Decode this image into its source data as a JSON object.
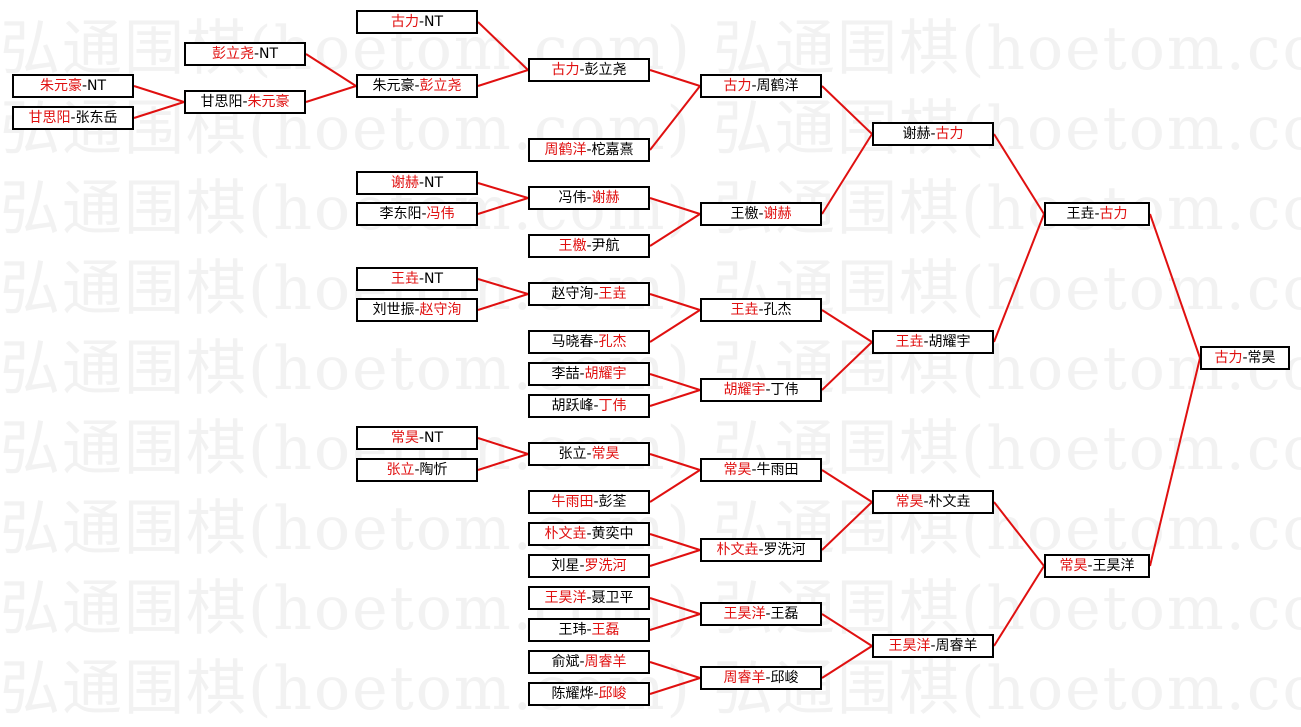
{
  "watermark": "弘通围棋(hoetom.com)",
  "colors": {
    "winner_text": "#e01010",
    "connector": "#e01010",
    "box_border": "#000000"
  },
  "separator": "-",
  "matches": [
    {
      "id": "m1",
      "players": [
        "朱元豪",
        "NT"
      ],
      "winner": 0,
      "from": []
    },
    {
      "id": "m2",
      "players": [
        "甘思阳",
        "张东岳"
      ],
      "winner": 0,
      "from": []
    },
    {
      "id": "m3",
      "players": [
        "彭立尧",
        "NT"
      ],
      "winner": 0,
      "from": []
    },
    {
      "id": "m4",
      "players": [
        "甘思阳",
        "朱元豪"
      ],
      "winner": 1,
      "from": [
        "m1",
        "m2"
      ]
    },
    {
      "id": "m5",
      "players": [
        "古力",
        "NT"
      ],
      "winner": 0,
      "from": []
    },
    {
      "id": "m6",
      "players": [
        "朱元豪",
        "彭立尧"
      ],
      "winner": 1,
      "from": [
        "m3",
        "m4"
      ]
    },
    {
      "id": "m7",
      "players": [
        "谢赫",
        "NT"
      ],
      "winner": 0,
      "from": []
    },
    {
      "id": "m8",
      "players": [
        "李东阳",
        "冯伟"
      ],
      "winner": 1,
      "from": []
    },
    {
      "id": "m9",
      "players": [
        "王垚",
        "NT"
      ],
      "winner": 0,
      "from": []
    },
    {
      "id": "m10",
      "players": [
        "刘世振",
        "赵守洵"
      ],
      "winner": 1,
      "from": []
    },
    {
      "id": "m11",
      "players": [
        "常昊",
        "NT"
      ],
      "winner": 0,
      "from": []
    },
    {
      "id": "m12",
      "players": [
        "张立",
        "陶忻"
      ],
      "winner": 0,
      "from": []
    },
    {
      "id": "m13",
      "players": [
        "古力",
        "彭立尧"
      ],
      "winner": 0,
      "from": [
        "m5",
        "m6"
      ]
    },
    {
      "id": "m14",
      "players": [
        "周鹤洋",
        "柁嘉熹"
      ],
      "winner": 0,
      "from": []
    },
    {
      "id": "m15",
      "players": [
        "冯伟",
        "谢赫"
      ],
      "winner": 1,
      "from": [
        "m7",
        "m8"
      ]
    },
    {
      "id": "m16",
      "players": [
        "王檄",
        "尹航"
      ],
      "winner": 0,
      "from": []
    },
    {
      "id": "m17",
      "players": [
        "赵守洵",
        "王垚"
      ],
      "winner": 1,
      "from": [
        "m9",
        "m10"
      ]
    },
    {
      "id": "m18",
      "players": [
        "马晓春",
        "孔杰"
      ],
      "winner": 1,
      "from": []
    },
    {
      "id": "m19",
      "players": [
        "李喆",
        "胡耀宇"
      ],
      "winner": 1,
      "from": []
    },
    {
      "id": "m20",
      "players": [
        "胡跃峰",
        "丁伟"
      ],
      "winner": 1,
      "from": []
    },
    {
      "id": "m21",
      "players": [
        "张立",
        "常昊"
      ],
      "winner": 1,
      "from": [
        "m11",
        "m12"
      ]
    },
    {
      "id": "m22",
      "players": [
        "牛雨田",
        "彭荃"
      ],
      "winner": 0,
      "from": []
    },
    {
      "id": "m23",
      "players": [
        "朴文垚",
        "黄奕中"
      ],
      "winner": 0,
      "from": []
    },
    {
      "id": "m24",
      "players": [
        "刘星",
        "罗洗河"
      ],
      "winner": 1,
      "from": []
    },
    {
      "id": "m25",
      "players": [
        "王昊洋",
        "聂卫平"
      ],
      "winner": 0,
      "from": []
    },
    {
      "id": "m26",
      "players": [
        "王玮",
        "王磊"
      ],
      "winner": 1,
      "from": []
    },
    {
      "id": "m27",
      "players": [
        "俞斌",
        "周睿羊"
      ],
      "winner": 1,
      "from": []
    },
    {
      "id": "m28",
      "players": [
        "陈耀烨",
        "邱峻"
      ],
      "winner": 1,
      "from": []
    },
    {
      "id": "m29",
      "players": [
        "古力",
        "周鹤洋"
      ],
      "winner": 0,
      "from": [
        "m13",
        "m14"
      ]
    },
    {
      "id": "m30",
      "players": [
        "王檄",
        "谢赫"
      ],
      "winner": 1,
      "from": [
        "m15",
        "m16"
      ]
    },
    {
      "id": "m31",
      "players": [
        "王垚",
        "孔杰"
      ],
      "winner": 0,
      "from": [
        "m17",
        "m18"
      ]
    },
    {
      "id": "m32",
      "players": [
        "胡耀宇",
        "丁伟"
      ],
      "winner": 0,
      "from": [
        "m19",
        "m20"
      ]
    },
    {
      "id": "m33",
      "players": [
        "常昊",
        "牛雨田"
      ],
      "winner": 0,
      "from": [
        "m21",
        "m22"
      ]
    },
    {
      "id": "m34",
      "players": [
        "朴文垚",
        "罗洗河"
      ],
      "winner": 0,
      "from": [
        "m23",
        "m24"
      ]
    },
    {
      "id": "m35",
      "players": [
        "王昊洋",
        "王磊"
      ],
      "winner": 0,
      "from": [
        "m25",
        "m26"
      ]
    },
    {
      "id": "m36",
      "players": [
        "周睿羊",
        "邱峻"
      ],
      "winner": 0,
      "from": [
        "m27",
        "m28"
      ]
    },
    {
      "id": "m37",
      "players": [
        "谢赫",
        "古力"
      ],
      "winner": 1,
      "from": [
        "m29",
        "m30"
      ]
    },
    {
      "id": "m38",
      "players": [
        "王垚",
        "胡耀宇"
      ],
      "winner": 0,
      "from": [
        "m31",
        "m32"
      ]
    },
    {
      "id": "m39",
      "players": [
        "常昊",
        "朴文垚"
      ],
      "winner": 0,
      "from": [
        "m33",
        "m34"
      ]
    },
    {
      "id": "m40",
      "players": [
        "王昊洋",
        "周睿羊"
      ],
      "winner": 0,
      "from": [
        "m35",
        "m36"
      ]
    },
    {
      "id": "m41",
      "players": [
        "王垚",
        "古力"
      ],
      "winner": 1,
      "from": [
        "m37",
        "m38"
      ]
    },
    {
      "id": "m42",
      "players": [
        "常昊",
        "王昊洋"
      ],
      "winner": 0,
      "from": [
        "m39",
        "m40"
      ]
    },
    {
      "id": "m43",
      "players": [
        "古力",
        "常昊"
      ],
      "winner": 0,
      "from": [
        "m41",
        "m42"
      ]
    }
  ]
}
